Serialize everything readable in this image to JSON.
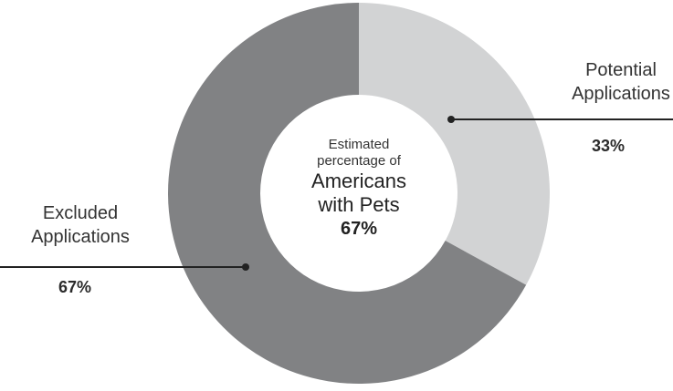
{
  "chart_data": {
    "type": "pie",
    "slices": [
      {
        "label_lines": [
          "Potential",
          "Applications"
        ],
        "value": 33,
        "value_label": "33%",
        "color": "#d2d3d4"
      },
      {
        "label_lines": [
          "Excluded",
          "Applications"
        ],
        "value": 67,
        "value_label": "67%",
        "color": "#818284"
      }
    ],
    "center": {
      "line1": "Estimated",
      "line2": "percentage of",
      "line3": "Americans",
      "line4": "with Pets",
      "value": "67%"
    },
    "legend": "none",
    "grid": false
  }
}
